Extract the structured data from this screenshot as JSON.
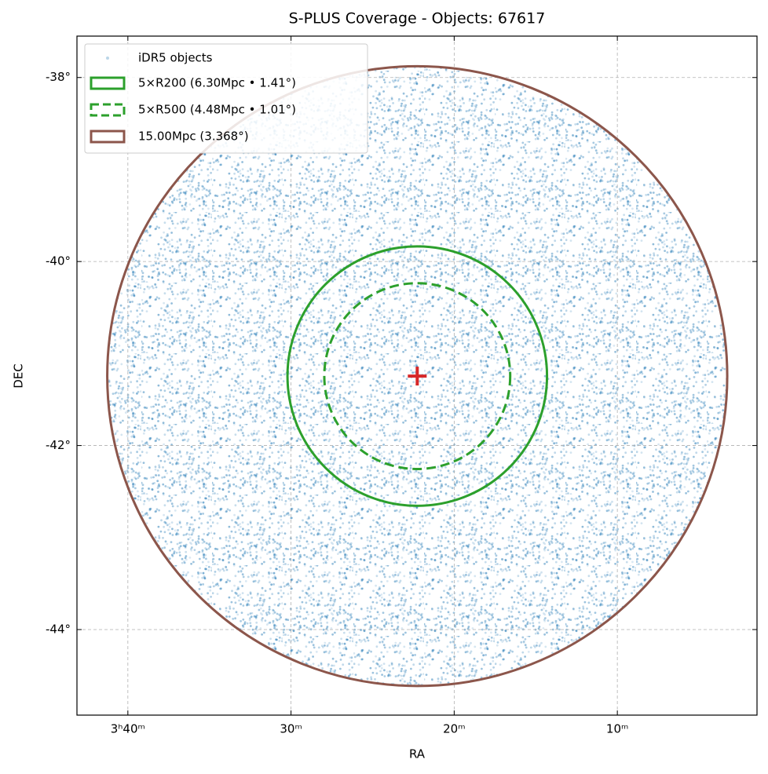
{
  "chart_data": {
    "type": "sky-map",
    "title": "S-PLUS Coverage - Objects: 67617",
    "xlabel": "RA",
    "ylabel": "DEC",
    "xlim": [
      55.78,
      45.36
    ],
    "ylim": [
      -44.93,
      -37.55
    ],
    "xticks": [
      {
        "value": 55,
        "label": "3ʰ40ᵐ"
      },
      {
        "value": 52.5,
        "label": "30ᵐ"
      },
      {
        "value": 50,
        "label": "20ᵐ"
      },
      {
        "value": 47.5,
        "label": "10ᵐ"
      }
    ],
    "yticks": [
      {
        "value": -38,
        "label": "-38°"
      },
      {
        "value": -40,
        "label": "-40°"
      },
      {
        "value": -42,
        "label": "-42°"
      },
      {
        "value": -44,
        "label": "-44°"
      }
    ],
    "grid": true,
    "legend": "upper left",
    "center": {
      "ra": 50.566,
      "dec": -41.245,
      "color": "#d62728"
    },
    "scatter": {
      "name": "iDR5 objects",
      "color": "#1f77b4"
    },
    "circles": [
      {
        "name": "5×R200 (6.30Mpc • 1.41°)",
        "radius": 1.41,
        "color": "#2ca02c",
        "dashed": false
      },
      {
        "name": "5×R500 (4.48Mpc • 1.01°)",
        "radius": 1.01,
        "color": "#2ca02c",
        "dashed": true
      },
      {
        "name": "15.00Mpc (3.368°)",
        "radius": 3.368,
        "color": "#8c564b",
        "dashed": false
      }
    ]
  }
}
